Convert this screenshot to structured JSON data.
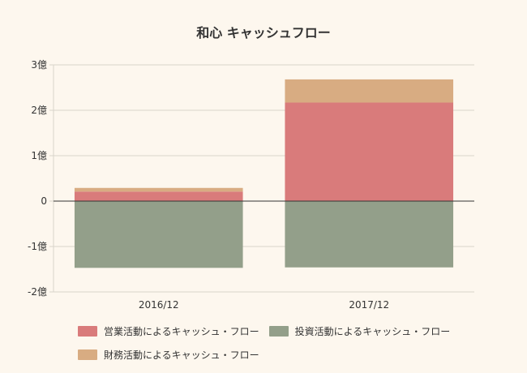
{
  "chart_data": {
    "type": "bar",
    "stacked": true,
    "title": "和心 キャッシュフロー",
    "categories": [
      "2016/12",
      "2017/12"
    ],
    "y_ticks": [
      "3億",
      "2億",
      "1億",
      "0",
      "-1億",
      "-2億"
    ],
    "ylim": [
      -2,
      3
    ],
    "y_unit": "億",
    "grid": true,
    "legend_position": "bottom",
    "series": [
      {
        "name": "営業活動によるキャッシュ・フロー",
        "color": "#d97b7b",
        "values": [
          0.21,
          2.17
        ]
      },
      {
        "name": "投資活動によるキャッシュ・フロー",
        "color": "#939f8a",
        "values": [
          -1.47,
          -1.46
        ]
      },
      {
        "name": "財務活動によるキャッシュ・フロー",
        "color": "#d8ac82",
        "values": [
          0.08,
          0.51
        ]
      }
    ]
  }
}
